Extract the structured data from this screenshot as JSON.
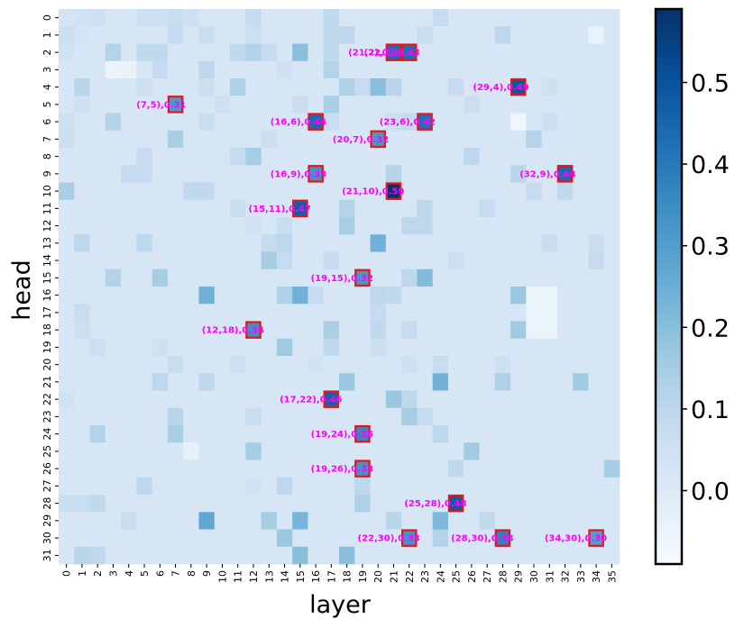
{
  "chart_data": {
    "type": "heatmap",
    "title": "",
    "xlabel": "layer",
    "ylabel": "head",
    "x_ticks": [
      "0",
      "1",
      "2",
      "3",
      "4",
      "5",
      "6",
      "7",
      "8",
      "9",
      "10",
      "11",
      "12",
      "13",
      "14",
      "15",
      "16",
      "17",
      "18",
      "19",
      "20",
      "21",
      "22",
      "23",
      "24",
      "25",
      "26",
      "27",
      "28",
      "29",
      "30",
      "31",
      "32",
      "33",
      "34",
      "35"
    ],
    "y_ticks": [
      "0",
      "1",
      "2",
      "3",
      "4",
      "5",
      "6",
      "7",
      "8",
      "9",
      "10",
      "11",
      "12",
      "13",
      "14",
      "15",
      "16",
      "17",
      "18",
      "19",
      "20",
      "21",
      "22",
      "23",
      "24",
      "25",
      "26",
      "27",
      "28",
      "29",
      "30",
      "31"
    ],
    "colormap": "Blues",
    "vmin": -0.09,
    "vmax": 0.59,
    "colorbar_ticks": [
      "0.0",
      "0.1",
      "0.2",
      "0.3",
      "0.4",
      "0.5"
    ],
    "colorbar_tick_values": [
      0.0,
      0.1,
      0.2,
      0.3,
      0.4,
      0.5
    ],
    "background_value": 0.02,
    "cells": [
      [
        0,
        0,
        0.03
      ],
      [
        1,
        0,
        0.04
      ],
      [
        2,
        0,
        0.05
      ],
      [
        5,
        0,
        0.05
      ],
      [
        6,
        0,
        0.05
      ],
      [
        7,
        0,
        0.07
      ],
      [
        8,
        0,
        0.05
      ],
      [
        12,
        0,
        0.08
      ],
      [
        17,
        0,
        0.09
      ],
      [
        24,
        0,
        0.08
      ],
      [
        0,
        1,
        0.06
      ],
      [
        1,
        1,
        0.03
      ],
      [
        7,
        1,
        0.08
      ],
      [
        9,
        1,
        0.07
      ],
      [
        12,
        1,
        0.06
      ],
      [
        17,
        1,
        0.1
      ],
      [
        18,
        1,
        0.1
      ],
      [
        23,
        1,
        0.07
      ],
      [
        28,
        1,
        0.1
      ],
      [
        34,
        1,
        -0.04
      ],
      [
        0,
        2,
        0.04
      ],
      [
        3,
        2,
        0.12
      ],
      [
        5,
        2,
        0.09
      ],
      [
        6,
        2,
        0.09
      ],
      [
        11,
        2,
        0.09
      ],
      [
        12,
        2,
        0.12
      ],
      [
        13,
        2,
        0.08
      ],
      [
        15,
        2,
        0.2
      ],
      [
        17,
        2,
        0.09
      ],
      [
        21,
        2,
        0.43
      ],
      [
        22,
        2,
        0.43
      ],
      [
        3,
        3,
        -0.05
      ],
      [
        4,
        3,
        -0.04
      ],
      [
        6,
        3,
        0.08
      ],
      [
        9,
        3,
        0.1
      ],
      [
        14,
        3,
        0.05
      ],
      [
        17,
        3,
        0.12
      ],
      [
        1,
        4,
        0.11
      ],
      [
        5,
        4,
        0.06
      ],
      [
        9,
        4,
        0.06
      ],
      [
        11,
        4,
        0.13
      ],
      [
        18,
        4,
        0.13
      ],
      [
        19,
        4,
        0.08
      ],
      [
        20,
        4,
        0.2
      ],
      [
        21,
        4,
        0.11
      ],
      [
        25,
        4,
        0.08
      ],
      [
        29,
        4,
        0.49
      ],
      [
        31,
        4,
        0.05
      ],
      [
        1,
        5,
        0.05
      ],
      [
        7,
        5,
        0.31
      ],
      [
        10,
        5,
        0.05
      ],
      [
        15,
        5,
        0.07
      ],
      [
        17,
        5,
        0.14
      ],
      [
        26,
        5,
        0.06
      ],
      [
        0,
        6,
        0.05
      ],
      [
        3,
        6,
        0.12
      ],
      [
        9,
        6,
        0.07
      ],
      [
        16,
        6,
        0.44
      ],
      [
        17,
        6,
        0.07
      ],
      [
        21,
        6,
        0.06
      ],
      [
        22,
        6,
        0.08
      ],
      [
        23,
        6,
        0.42
      ],
      [
        29,
        6,
        -0.06
      ],
      [
        31,
        6,
        0.06
      ],
      [
        0,
        7,
        0.06
      ],
      [
        7,
        7,
        0.14
      ],
      [
        13,
        7,
        0.06
      ],
      [
        20,
        7,
        0.32
      ],
      [
        30,
        7,
        0.12
      ],
      [
        5,
        8,
        0.08
      ],
      [
        11,
        8,
        0.08
      ],
      [
        12,
        8,
        0.15
      ],
      [
        26,
        8,
        0.1
      ],
      [
        4,
        9,
        0.08
      ],
      [
        5,
        9,
        0.08
      ],
      [
        16,
        9,
        0.33
      ],
      [
        21,
        9,
        0.12
      ],
      [
        29,
        9,
        0.11
      ],
      [
        32,
        9,
        0.44
      ],
      [
        0,
        10,
        0.14
      ],
      [
        8,
        10,
        0.09
      ],
      [
        9,
        10,
        0.09
      ],
      [
        21,
        10,
        0.59
      ],
      [
        30,
        10,
        0.08
      ],
      [
        32,
        10,
        0.09
      ],
      [
        11,
        11,
        0.07
      ],
      [
        15,
        11,
        0.47
      ],
      [
        18,
        11,
        0.12
      ],
      [
        23,
        11,
        0.1
      ],
      [
        27,
        11,
        0.08
      ],
      [
        12,
        12,
        0.04
      ],
      [
        14,
        12,
        0.07
      ],
      [
        18,
        12,
        0.14
      ],
      [
        22,
        12,
        0.1
      ],
      [
        23,
        12,
        0.1
      ],
      [
        1,
        13,
        0.1
      ],
      [
        5,
        13,
        0.1
      ],
      [
        13,
        13,
        0.08
      ],
      [
        14,
        13,
        0.1
      ],
      [
        20,
        13,
        0.24
      ],
      [
        31,
        13,
        0.07
      ],
      [
        34,
        13,
        0.07
      ],
      [
        13,
        14,
        0.15
      ],
      [
        14,
        14,
        0.08
      ],
      [
        17,
        14,
        0.08
      ],
      [
        25,
        14,
        0.06
      ],
      [
        34,
        14,
        0.08
      ],
      [
        3,
        15,
        0.12
      ],
      [
        6,
        15,
        0.15
      ],
      [
        19,
        15,
        0.32
      ],
      [
        22,
        15,
        0.1
      ],
      [
        23,
        15,
        0.21
      ],
      [
        9,
        16,
        0.24
      ],
      [
        14,
        16,
        0.13
      ],
      [
        15,
        16,
        0.24
      ],
      [
        16,
        16,
        0.08
      ],
      [
        20,
        16,
        0.1
      ],
      [
        21,
        16,
        0.09
      ],
      [
        29,
        16,
        0.17
      ],
      [
        30,
        16,
        -0.05
      ],
      [
        31,
        16,
        -0.05
      ],
      [
        1,
        17,
        0.07
      ],
      [
        20,
        17,
        0.08
      ],
      [
        30,
        17,
        -0.05
      ],
      [
        31,
        17,
        -0.05
      ],
      [
        1,
        18,
        0.06
      ],
      [
        12,
        18,
        0.34
      ],
      [
        17,
        18,
        0.14
      ],
      [
        20,
        18,
        0.09
      ],
      [
        22,
        18,
        0.08
      ],
      [
        29,
        18,
        0.16
      ],
      [
        30,
        18,
        -0.05
      ],
      [
        31,
        18,
        -0.05
      ],
      [
        2,
        19,
        0.06
      ],
      [
        6,
        19,
        0.05
      ],
      [
        14,
        19,
        0.16
      ],
      [
        17,
        19,
        0.09
      ],
      [
        20,
        19,
        0.06
      ],
      [
        7,
        20,
        0.07
      ],
      [
        11,
        20,
        0.05
      ],
      [
        16,
        20,
        0.04
      ],
      [
        22,
        20,
        0.05
      ],
      [
        24,
        20,
        0.07
      ],
      [
        28,
        20,
        0.05
      ],
      [
        6,
        21,
        0.1
      ],
      [
        9,
        21,
        0.1
      ],
      [
        18,
        21,
        0.17
      ],
      [
        24,
        21,
        0.24
      ],
      [
        28,
        21,
        0.13
      ],
      [
        33,
        21,
        0.16
      ],
      [
        0,
        22,
        0.04
      ],
      [
        17,
        22,
        0.46
      ],
      [
        21,
        22,
        0.17
      ],
      [
        22,
        22,
        0.1
      ],
      [
        7,
        23,
        0.11
      ],
      [
        12,
        23,
        0.07
      ],
      [
        22,
        23,
        0.15
      ],
      [
        23,
        23,
        0.08
      ],
      [
        2,
        24,
        0.12
      ],
      [
        7,
        24,
        0.14
      ],
      [
        19,
        24,
        0.36
      ],
      [
        24,
        24,
        0.1
      ],
      [
        8,
        25,
        -0.03
      ],
      [
        12,
        25,
        0.15
      ],
      [
        26,
        25,
        0.16
      ],
      [
        19,
        26,
        0.33
      ],
      [
        25,
        26,
        0.09
      ],
      [
        35,
        26,
        0.15
      ],
      [
        5,
        27,
        0.1
      ],
      [
        12,
        27,
        0.04
      ],
      [
        14,
        27,
        0.1
      ],
      [
        19,
        27,
        0.1
      ],
      [
        0,
        28,
        0.07
      ],
      [
        1,
        28,
        0.07
      ],
      [
        2,
        28,
        0.09
      ],
      [
        19,
        28,
        0.13
      ],
      [
        25,
        28,
        0.48
      ],
      [
        4,
        29,
        0.07
      ],
      [
        9,
        29,
        0.27
      ],
      [
        13,
        29,
        0.15
      ],
      [
        15,
        29,
        0.23
      ],
      [
        21,
        29,
        0.11
      ],
      [
        24,
        29,
        0.22
      ],
      [
        27,
        29,
        0.09
      ],
      [
        14,
        30,
        0.17
      ],
      [
        22,
        30,
        0.33
      ],
      [
        24,
        30,
        0.12
      ],
      [
        28,
        30,
        0.38
      ],
      [
        34,
        30,
        0.3
      ],
      [
        1,
        31,
        0.11
      ],
      [
        2,
        31,
        0.09
      ],
      [
        15,
        31,
        0.2
      ],
      [
        18,
        31,
        0.2
      ]
    ],
    "highlights": [
      {
        "layer": 21,
        "head": 2,
        "label": "(21,2),0.43"
      },
      {
        "layer": 22,
        "head": 2,
        "label": "(22,2),0.43"
      },
      {
        "layer": 29,
        "head": 4,
        "label": "(29,4),0.49"
      },
      {
        "layer": 7,
        "head": 5,
        "label": "(7,5),0.31"
      },
      {
        "layer": 16,
        "head": 6,
        "label": "(16,6),0.44"
      },
      {
        "layer": 23,
        "head": 6,
        "label": "(23,6),0.42"
      },
      {
        "layer": 20,
        "head": 7,
        "label": "(20,7),0.32"
      },
      {
        "layer": 16,
        "head": 9,
        "label": "(16,9),0.33"
      },
      {
        "layer": 32,
        "head": 9,
        "label": "(32,9),0.44"
      },
      {
        "layer": 21,
        "head": 10,
        "label": "(21,10),0.59"
      },
      {
        "layer": 15,
        "head": 11,
        "label": "(15,11),0.47"
      },
      {
        "layer": 19,
        "head": 15,
        "label": "(19,15),0.32"
      },
      {
        "layer": 12,
        "head": 18,
        "label": "(12,18),0.34"
      },
      {
        "layer": 17,
        "head": 22,
        "label": "(17,22),0.46"
      },
      {
        "layer": 19,
        "head": 24,
        "label": "(19,24),0.36"
      },
      {
        "layer": 19,
        "head": 26,
        "label": "(19,26),0.33"
      },
      {
        "layer": 25,
        "head": 28,
        "label": "(25,28),0.48"
      },
      {
        "layer": 22,
        "head": 30,
        "label": "(22,30),0.33"
      },
      {
        "layer": 28,
        "head": 30,
        "label": "(28,30),0.38"
      },
      {
        "layer": 34,
        "head": 30,
        "label": "(34,30),0.30"
      }
    ]
  }
}
